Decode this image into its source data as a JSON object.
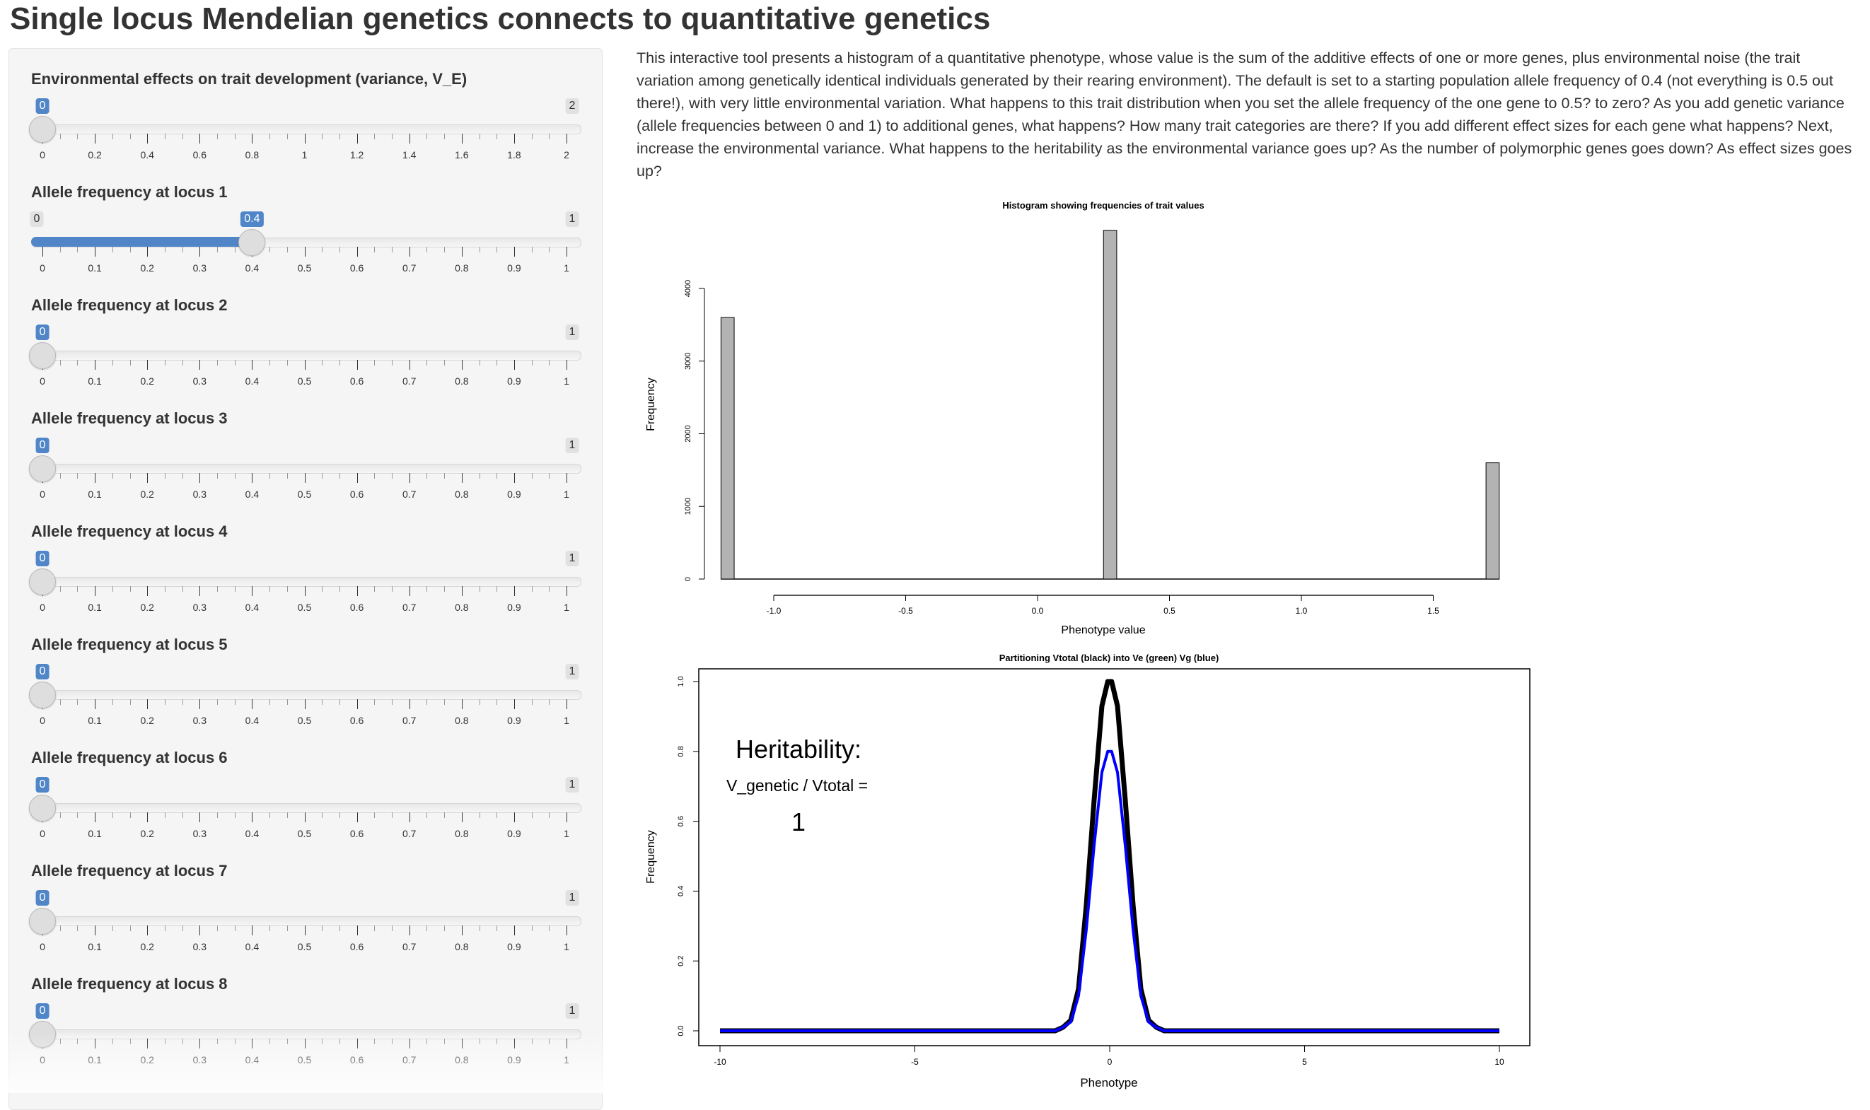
{
  "page": {
    "title": "Single locus Mendelian genetics connects to quantitative genetics",
    "description": "This interactive tool presents a histogram of a quantitative phenotype, whose value is the sum of the additive effects of one or more genes, plus environmental noise (the trait variation among genetically identical individuals generated by their rearing environment). The default is set to a starting population allele frequency of 0.4 (not everything is 0.5 out there!), with very little environmental variation. What happens to this trait distribution when you set the allele frequency of the one gene to 0.5? to zero? As you add genetic variance (allele frequencies between 0 and 1) to additional genes, what happens? How many trait categories are there? If you add different effect sizes for each gene what happens? Next, increase the environmental variance. What happens to the heritability as the environmental variance goes up? As the number of polymorphic genes goes down? As effect sizes goes up?"
  },
  "colors": {
    "accent": "#5086c8",
    "sidebar_bg": "#f5f5f5",
    "bar_fill": "#b3b3b3",
    "total_line": "#000000",
    "genetic_line": "#0000ff"
  },
  "sliders": [
    {
      "label": "Environmental effects on trait development (variance, V_E)",
      "min": 0,
      "max": 2,
      "value": 0,
      "min_label": "0",
      "max_label": "2",
      "value_label": "0",
      "ticks": [
        "0",
        "0.2",
        "0.4",
        "0.6",
        "0.8",
        "1",
        "1.2",
        "1.4",
        "1.6",
        "1.8",
        "2"
      ]
    },
    {
      "label": "Allele frequency at locus 1",
      "min": 0,
      "max": 1,
      "value": 0.4,
      "min_label": "0",
      "max_label": "1",
      "value_label": "0.4",
      "ticks": [
        "0",
        "0.1",
        "0.2",
        "0.3",
        "0.4",
        "0.5",
        "0.6",
        "0.7",
        "0.8",
        "0.9",
        "1"
      ]
    },
    {
      "label": "Allele frequency at locus 2",
      "min": 0,
      "max": 1,
      "value": 0,
      "min_label": "0",
      "max_label": "1",
      "value_label": "0",
      "ticks": [
        "0",
        "0.1",
        "0.2",
        "0.3",
        "0.4",
        "0.5",
        "0.6",
        "0.7",
        "0.8",
        "0.9",
        "1"
      ]
    },
    {
      "label": "Allele frequency at locus 3",
      "min": 0,
      "max": 1,
      "value": 0,
      "min_label": "0",
      "max_label": "1",
      "value_label": "0",
      "ticks": [
        "0",
        "0.1",
        "0.2",
        "0.3",
        "0.4",
        "0.5",
        "0.6",
        "0.7",
        "0.8",
        "0.9",
        "1"
      ]
    },
    {
      "label": "Allele frequency at locus 4",
      "min": 0,
      "max": 1,
      "value": 0,
      "min_label": "0",
      "max_label": "1",
      "value_label": "0",
      "ticks": [
        "0",
        "0.1",
        "0.2",
        "0.3",
        "0.4",
        "0.5",
        "0.6",
        "0.7",
        "0.8",
        "0.9",
        "1"
      ]
    },
    {
      "label": "Allele frequency at locus 5",
      "min": 0,
      "max": 1,
      "value": 0,
      "min_label": "0",
      "max_label": "1",
      "value_label": "0",
      "ticks": [
        "0",
        "0.1",
        "0.2",
        "0.3",
        "0.4",
        "0.5",
        "0.6",
        "0.7",
        "0.8",
        "0.9",
        "1"
      ]
    },
    {
      "label": "Allele frequency at locus 6",
      "min": 0,
      "max": 1,
      "value": 0,
      "min_label": "0",
      "max_label": "1",
      "value_label": "0",
      "ticks": [
        "0",
        "0.1",
        "0.2",
        "0.3",
        "0.4",
        "0.5",
        "0.6",
        "0.7",
        "0.8",
        "0.9",
        "1"
      ]
    },
    {
      "label": "Allele frequency at locus 7",
      "min": 0,
      "max": 1,
      "value": 0,
      "min_label": "0",
      "max_label": "1",
      "value_label": "0",
      "ticks": [
        "0",
        "0.1",
        "0.2",
        "0.3",
        "0.4",
        "0.5",
        "0.6",
        "0.7",
        "0.8",
        "0.9",
        "1"
      ]
    },
    {
      "label": "Allele frequency at locus 8",
      "min": 0,
      "max": 1,
      "value": 0,
      "min_label": "0",
      "max_label": "1",
      "value_label": "0",
      "ticks": [
        "0",
        "0.1",
        "0.2",
        "0.3",
        "0.4",
        "0.5",
        "0.6",
        "0.7",
        "0.8",
        "0.9",
        "1"
      ]
    }
  ],
  "chart_data": [
    {
      "type": "bar",
      "title": "Histogram showing frequencies of trait values",
      "xlabel": "Phenotype value",
      "ylabel": "Frequency",
      "xlim": [
        -1.2,
        1.75
      ],
      "ylim": [
        0,
        4800
      ],
      "xticks": [
        -1.0,
        -0.5,
        0.0,
        0.5,
        1.0,
        1.5
      ],
      "xtick_labels": [
        "-1.0",
        "-0.5",
        "0.0",
        "0.5",
        "1.0",
        "1.5"
      ],
      "yticks": [
        0,
        1000,
        2000,
        3000,
        4000
      ],
      "ytick_labels": [
        "0",
        "1000",
        "2000",
        "3000",
        "4000"
      ],
      "bins": [
        {
          "x0": -1.2,
          "x1": -1.15,
          "count": 3600
        },
        {
          "x0": 0.25,
          "x1": 0.3,
          "count": 4800
        },
        {
          "x0": 1.7,
          "x1": 1.75,
          "count": 1600
        }
      ]
    },
    {
      "type": "line",
      "title": "Partitioning Vtotal (black) into Ve (green) Vg (blue)",
      "xlabel": "Phenotype",
      "ylabel": "Frequency",
      "xlim": [
        -10,
        10
      ],
      "ylim": [
        0,
        1
      ],
      "xticks": [
        -10,
        -5,
        0,
        5,
        10
      ],
      "xtick_labels": [
        "-10",
        "-5",
        "0",
        "5",
        "10"
      ],
      "yticks": [
        0,
        0.2,
        0.4,
        0.6,
        0.8,
        1.0
      ],
      "ytick_labels": [
        "0.0",
        "0.2",
        "0.4",
        "0.6",
        "0.8",
        "1.0"
      ],
      "x": [
        -10,
        -1.4,
        -1.2,
        -1.0,
        -0.8,
        -0.6,
        -0.4,
        -0.2,
        -0.05,
        0.05,
        0.2,
        0.4,
        0.6,
        0.8,
        1.0,
        1.2,
        1.4,
        10
      ],
      "series": [
        {
          "name": "Vtotal",
          "color": "#000000",
          "values": [
            0,
            0,
            0.01,
            0.03,
            0.12,
            0.36,
            0.66,
            0.93,
            1,
            1,
            0.93,
            0.66,
            0.36,
            0.12,
            0.03,
            0.01,
            0,
            0
          ]
        },
        {
          "name": "Vg",
          "color": "#0000ff",
          "values": [
            0,
            0,
            0.01,
            0.025,
            0.1,
            0.29,
            0.53,
            0.74,
            0.8,
            0.8,
            0.74,
            0.53,
            0.29,
            0.1,
            0.025,
            0.01,
            0,
            0
          ]
        }
      ],
      "annotations": {
        "heading": "Heritability:",
        "formula": "V_genetic / Vtotal =",
        "value": "1"
      }
    }
  ]
}
